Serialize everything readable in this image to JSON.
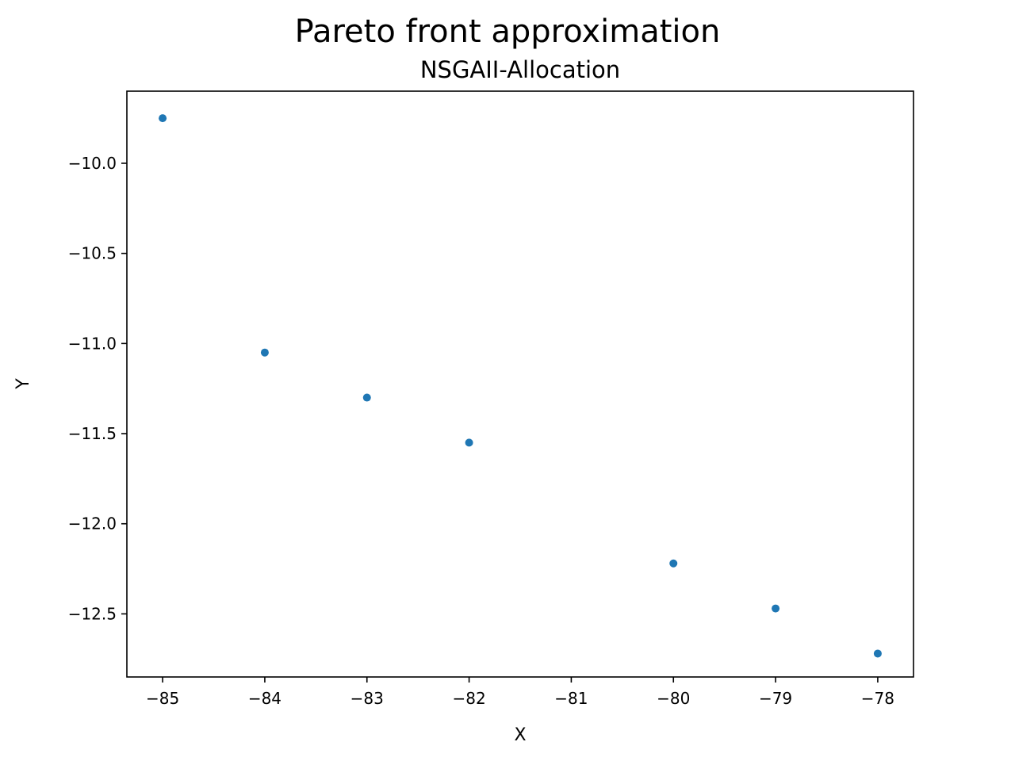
{
  "chart_data": {
    "type": "scatter",
    "title": "Pareto front approximation",
    "subtitle": "NSGAII-Allocation",
    "xlabel": "X",
    "ylabel": "Y",
    "xlim": [
      -85.35,
      -77.65
    ],
    "ylim": [
      -12.85,
      -9.6
    ],
    "xticks": [
      -85,
      -84,
      -83,
      -82,
      -81,
      -80,
      -79,
      -78
    ],
    "xtick_labels": [
      "−85",
      "−84",
      "−83",
      "−82",
      "−81",
      "−80",
      "−79",
      "−78"
    ],
    "yticks": [
      -10.0,
      -10.5,
      -11.0,
      -11.5,
      -12.0,
      -12.5
    ],
    "ytick_labels": [
      "−10.0",
      "−10.5",
      "−11.0",
      "−11.5",
      "−12.0",
      "−12.5"
    ],
    "grid": false,
    "marker_color": "#1f77b4",
    "series": [
      {
        "x": [
          -85,
          -84,
          -83,
          -82,
          -80,
          -79,
          -78
        ],
        "y": [
          -9.75,
          -11.05,
          -11.3,
          -11.55,
          -12.22,
          -12.47,
          -12.72
        ]
      }
    ]
  }
}
